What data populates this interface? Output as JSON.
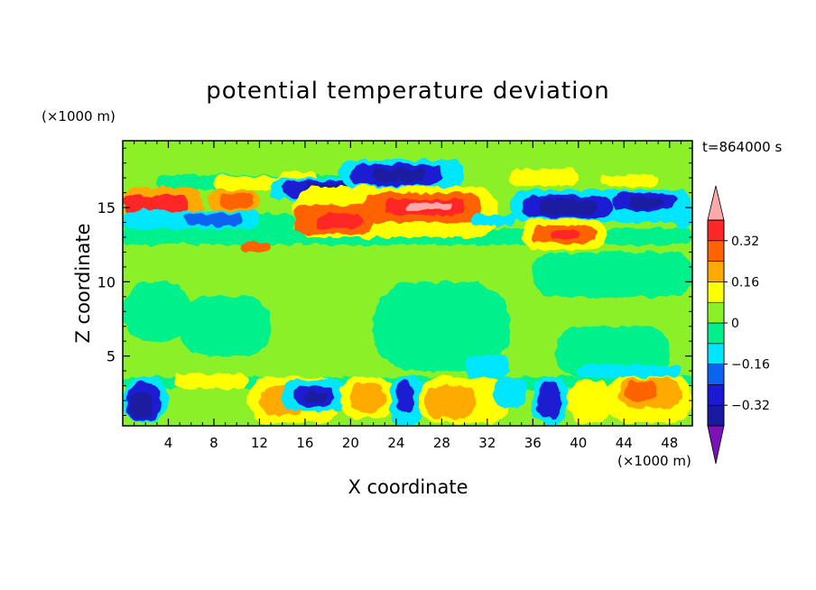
{
  "chart_data": {
    "type": "heatmap",
    "title": "potential temperature deviation",
    "xlabel": "X coordinate",
    "ylabel": "Z coordinate",
    "x_unit": "(×1000 m)",
    "z_unit": "(×1000 m)",
    "time_label": "t=864000 s",
    "xlim": [
      0,
      50
    ],
    "ylim": [
      0.3,
      19.5
    ],
    "x_ticks": [
      4,
      8,
      12,
      16,
      20,
      24,
      28,
      32,
      36,
      40,
      44,
      48
    ],
    "y_ticks": [
      5,
      10,
      15
    ],
    "colorbar": {
      "tick_values": [
        0.32,
        0.16,
        0,
        -0.16,
        -0.32
      ],
      "tick_labels": [
        "0.32",
        "0.16",
        "0",
        "−0.16",
        "−0.32"
      ],
      "levels": [
        -0.4,
        -0.32,
        -0.24,
        -0.16,
        -0.08,
        0,
        0.08,
        0.16,
        0.24,
        0.32,
        0.4
      ],
      "colors": [
        "#7a12b5",
        "#1a1aa0",
        "#1a1ad2",
        "#0a64f0",
        "#00e6ff",
        "#00f08c",
        "#8cf028",
        "#ffff00",
        "#ffaa00",
        "#ff6400",
        "#ff2828",
        "#ffaaaa"
      ],
      "extend": "both"
    },
    "background_color": "#8cf028",
    "regions": [
      {
        "x": [
          6,
          24
        ],
        "z": [
          16.4,
          18.2
        ],
        "v": 0.06,
        "note": "broad green-ish upper band"
      },
      {
        "x": [
          3,
          22
        ],
        "z": [
          16.2,
          17.2
        ],
        "v": -0.02
      },
      {
        "x": [
          0,
          15
        ],
        "z": [
          13.2,
          14.6
        ],
        "v": -0.02
      },
      {
        "x": [
          0,
          50
        ],
        "z": [
          12.5,
          13.6
        ],
        "v": -0.02
      },
      {
        "x": [
          0,
          50
        ],
        "z": [
          2.8,
          3.6
        ],
        "v": -0.02
      },
      {
        "x": [
          8,
          14
        ],
        "z": [
          16.2,
          17.1
        ],
        "v": 0.12
      },
      {
        "x": [
          13.5,
          17
        ],
        "z": [
          16.5,
          17.4
        ],
        "v": 0.14
      },
      {
        "x": [
          20,
          28
        ],
        "z": [
          16.6,
          17.5
        ],
        "v": 0.12
      },
      {
        "x": [
          34,
          40
        ],
        "z": [
          16.5,
          17.6
        ],
        "v": 0.14
      },
      {
        "x": [
          42,
          47
        ],
        "z": [
          16.4,
          17.2
        ],
        "v": 0.12
      },
      {
        "x": [
          0,
          7
        ],
        "z": [
          14.2,
          16.4
        ],
        "v": 0.18
      },
      {
        "x": [
          0,
          5.8
        ],
        "z": [
          14.7,
          15.8
        ],
        "v": 0.34
      },
      {
        "x": [
          0.5,
          3.5
        ],
        "z": [
          15.0,
          15.5
        ],
        "v": 0.36
      },
      {
        "x": [
          7.5,
          12
        ],
        "z": [
          14.7,
          16.2
        ],
        "v": 0.18
      },
      {
        "x": [
          8.5,
          11.5
        ],
        "z": [
          15.0,
          15.9
        ],
        "v": 0.3
      },
      {
        "x": [
          13,
          21
        ],
        "z": [
          15.5,
          17.0
        ],
        "v": -0.14
      },
      {
        "x": [
          14,
          20.5
        ],
        "z": [
          15.7,
          16.8
        ],
        "v": -0.26
      },
      {
        "x": [
          16,
          19.5
        ],
        "z": [
          15.8,
          16.6
        ],
        "v": -0.36
      },
      {
        "x": [
          19,
          30
        ],
        "z": [
          16.3,
          18.2
        ],
        "v": -0.14
      },
      {
        "x": [
          20,
          28
        ],
        "z": [
          16.5,
          17.9
        ],
        "v": -0.28
      },
      {
        "x": [
          22,
          26.5
        ],
        "z": [
          16.8,
          17.6
        ],
        "v": -0.34
      },
      {
        "x": [
          15,
          33
        ],
        "z": [
          13.0,
          16.4
        ],
        "v": 0.14
      },
      {
        "x": [
          15,
          22
        ],
        "z": [
          13.2,
          15.2
        ],
        "v": 0.3
      },
      {
        "x": [
          17,
          21
        ],
        "z": [
          13.6,
          14.6
        ],
        "v": 0.38
      },
      {
        "x": [
          21,
          31.5
        ],
        "z": [
          14.0,
          16.0
        ],
        "v": 0.28
      },
      {
        "x": [
          23,
          30
        ],
        "z": [
          14.5,
          15.6
        ],
        "v": 0.36
      },
      {
        "x": [
          25,
          29
        ],
        "z": [
          14.8,
          15.3
        ],
        "v": 0.42
      },
      {
        "x": [
          34,
          50
        ],
        "z": [
          14.0,
          16.2
        ],
        "v": -0.12
      },
      {
        "x": [
          35,
          43
        ],
        "z": [
          14.3,
          15.8
        ],
        "v": -0.3
      },
      {
        "x": [
          36.5,
          41.5
        ],
        "z": [
          14.5,
          15.5
        ],
        "v": -0.38
      },
      {
        "x": [
          43,
          48.5
        ],
        "z": [
          14.8,
          16.0
        ],
        "v": -0.3
      },
      {
        "x": [
          44.5,
          47.5
        ],
        "z": [
          15.0,
          15.7
        ],
        "v": -0.36
      },
      {
        "x": [
          35,
          42.5
        ],
        "z": [
          12.2,
          14.2
        ],
        "v": 0.14
      },
      {
        "x": [
          36,
          41.5
        ],
        "z": [
          12.6,
          13.8
        ],
        "v": 0.28
      },
      {
        "x": [
          37.5,
          40
        ],
        "z": [
          12.9,
          13.5
        ],
        "v": 0.36
      },
      {
        "x": [
          0,
          12
        ],
        "z": [
          13.6,
          14.8
        ],
        "v": -0.13
      },
      {
        "x": [
          5.5,
          10.5
        ],
        "z": [
          13.8,
          14.6
        ],
        "v": -0.18
      },
      {
        "x": [
          10.5,
          13
        ],
        "z": [
          12.0,
          12.7
        ],
        "v": 0.26
      },
      {
        "x": [
          30.5,
          34.5
        ],
        "z": [
          13.8,
          14.5
        ],
        "v": -0.14
      },
      {
        "x": [
          48.5,
          50
        ],
        "z": [
          13.6,
          14.6
        ],
        "v": -0.16
      },
      {
        "x": [
          0,
          4
        ],
        "z": [
          0.5,
          3.6
        ],
        "v": -0.14
      },
      {
        "x": [
          0.3,
          3.3
        ],
        "z": [
          0.6,
          3.2
        ],
        "v": -0.3
      },
      {
        "x": [
          0.6,
          2.6
        ],
        "z": [
          0.8,
          2.6
        ],
        "v": -0.36
      },
      {
        "x": [
          4.5,
          11
        ],
        "z": [
          2.8,
          3.8
        ],
        "v": 0.1
      },
      {
        "x": [
          11,
          19
        ],
        "z": [
          0.5,
          3.6
        ],
        "v": 0.1
      },
      {
        "x": [
          12,
          16
        ],
        "z": [
          1.0,
          3.0
        ],
        "v": 0.2
      },
      {
        "x": [
          14,
          20
        ],
        "z": [
          1.3,
          3.4
        ],
        "v": -0.14
      },
      {
        "x": [
          15,
          18.5
        ],
        "z": [
          1.6,
          3.0
        ],
        "v": -0.3
      },
      {
        "x": [
          16,
          18
        ],
        "z": [
          1.9,
          2.6
        ],
        "v": -0.36
      },
      {
        "x": [
          19,
          24
        ],
        "z": [
          0.8,
          3.6
        ],
        "v": 0.14
      },
      {
        "x": [
          20,
          23
        ],
        "z": [
          1.2,
          3.2
        ],
        "v": 0.22
      },
      {
        "x": [
          23.5,
          26.5
        ],
        "z": [
          0.3,
          3.6
        ],
        "v": -0.14
      },
      {
        "x": [
          24,
          25.5
        ],
        "z": [
          1.2,
          3.3
        ],
        "v": -0.3
      },
      {
        "x": [
          26,
          34
        ],
        "z": [
          0.5,
          3.6
        ],
        "v": 0.12
      },
      {
        "x": [
          26.5,
          31
        ],
        "z": [
          0.8,
          3.0
        ],
        "v": 0.2
      },
      {
        "x": [
          32.5,
          35.5
        ],
        "z": [
          1.5,
          3.6
        ],
        "v": -0.13
      },
      {
        "x": [
          36,
          39
        ],
        "z": [
          0.4,
          3.6
        ],
        "v": -0.14
      },
      {
        "x": [
          36.5,
          38.5
        ],
        "z": [
          0.8,
          3.3
        ],
        "v": -0.32
      },
      {
        "x": [
          39,
          43
        ],
        "z": [
          0.5,
          3.4
        ],
        "v": 0.12
      },
      {
        "x": [
          42.5,
          50
        ],
        "z": [
          0.5,
          3.7
        ],
        "v": 0.12
      },
      {
        "x": [
          43.5,
          49
        ],
        "z": [
          1.5,
          3.5
        ],
        "v": 0.22
      },
      {
        "x": [
          44,
          47
        ],
        "z": [
          2.0,
          3.3
        ],
        "v": 0.25
      },
      {
        "x": [
          5,
          13
        ],
        "z": [
          5.0,
          9.0
        ],
        "v": -0.02
      },
      {
        "x": [
          22,
          34
        ],
        "z": [
          4.0,
          10.0
        ],
        "v": -0.02
      },
      {
        "x": [
          38,
          48
        ],
        "z": [
          3.6,
          7.0
        ],
        "v": -0.02
      },
      {
        "x": [
          40,
          49
        ],
        "z": [
          3.6,
          4.4
        ],
        "v": -0.14
      },
      {
        "x": [
          30,
          34
        ],
        "z": [
          3.6,
          5.0
        ],
        "v": -0.13
      },
      {
        "x": [
          36,
          50
        ],
        "z": [
          9.0,
          12.0
        ],
        "v": -0.02
      },
      {
        "x": [
          0,
          6
        ],
        "z": [
          6.0,
          10.0
        ],
        "v": -0.02
      },
      {
        "x": [
          0,
          50
        ],
        "z": [
          18.4,
          19.5
        ],
        "v": 0.06
      }
    ]
  }
}
